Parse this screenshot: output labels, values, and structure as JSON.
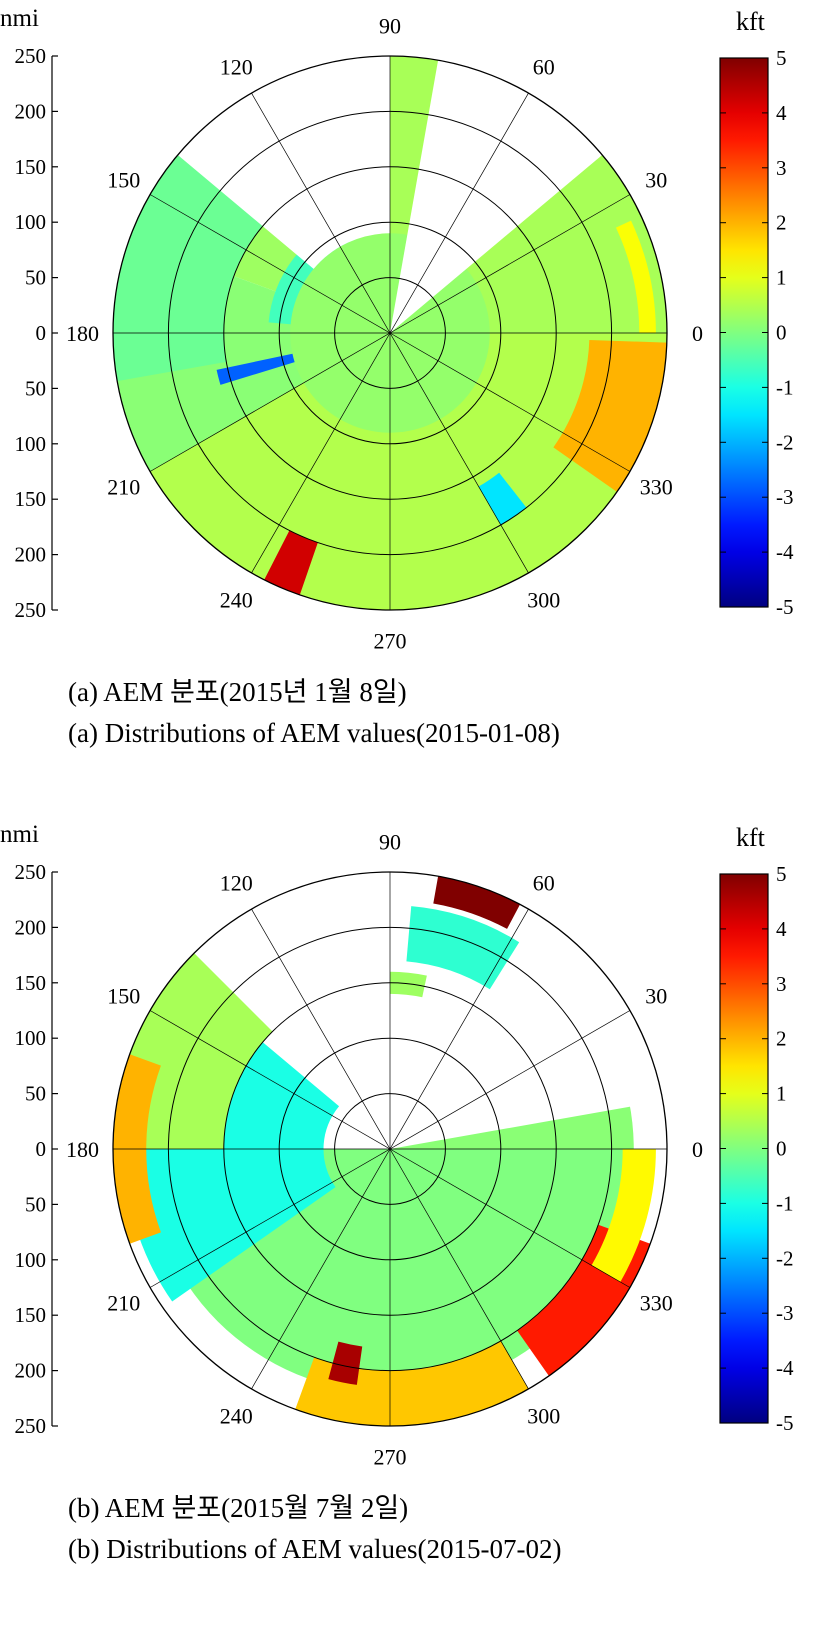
{
  "chart_data": [
    {
      "type": "heatmap",
      "subtype": "polar",
      "radial_axis_label": "nmi",
      "radial_ticks": [
        250,
        200,
        150,
        100,
        50,
        0,
        50,
        100,
        150,
        200,
        250
      ],
      "rlim": [
        0,
        250
      ],
      "angle_ticks": [
        90,
        60,
        30,
        0,
        330,
        300,
        270,
        240,
        210,
        180,
        150,
        120
      ],
      "colorbar_label": "kft",
      "colorbar_ticks": [
        5,
        4,
        3,
        2,
        1,
        0,
        -1,
        -2,
        -3,
        -4,
        -5
      ],
      "clim": [
        -5,
        5
      ],
      "colormap": "jet",
      "caption_kr": "(a)  AEM  분포(2015년  1월  8일)",
      "caption_en": "(a)  Distributions  of  AEM  values(2015-01-08)",
      "regions": [
        {
          "r": [
            0,
            250
          ],
          "theta": [
            0,
            100
          ],
          "value": 0.4
        },
        {
          "r": [
            0,
            250
          ],
          "theta": [
            100,
            160
          ],
          "value": 0.3
        },
        {
          "r": [
            0,
            250
          ],
          "theta": [
            160,
            210
          ],
          "value": 0.1
        },
        {
          "r": [
            0,
            250
          ],
          "theta": [
            210,
            360
          ],
          "value": 0.5
        },
        {
          "r": [
            50,
            110
          ],
          "theta": [
            110,
            175
          ],
          "value": -0.6
        },
        {
          "r": [
            150,
            250
          ],
          "theta": [
            125,
            190
          ],
          "value": -0.2
        },
        {
          "r": [
            180,
            250
          ],
          "theta": [
            325,
            358
          ],
          "value": 2.0
        },
        {
          "r": [
            0,
            90
          ],
          "theta": [
            0,
            360
          ],
          "value": 0.2
        },
        {
          "r": [
            200,
            250
          ],
          "theta": [
            243,
            251
          ],
          "value": 4.2
        },
        {
          "r": [
            160,
            200
          ],
          "theta": [
            300,
            308
          ],
          "value": -1.5
        },
        {
          "r": [
            90,
            160
          ],
          "theta": [
            192,
            197
          ],
          "value": -2.8
        },
        {
          "r": [
            225,
            240
          ],
          "theta": [
            0,
            25
          ],
          "value": 1.2
        },
        {
          "r": [
            0,
            250
          ],
          "theta": [
            40,
            80
          ],
          "value": null
        },
        {
          "r": [
            90,
            250
          ],
          "theta": [
            90,
            140
          ],
          "value": null
        }
      ]
    },
    {
      "type": "heatmap",
      "subtype": "polar",
      "radial_axis_label": "nmi",
      "radial_ticks": [
        250,
        200,
        150,
        100,
        50,
        0,
        50,
        100,
        150,
        200,
        250
      ],
      "rlim": [
        0,
        250
      ],
      "angle_ticks": [
        90,
        60,
        30,
        0,
        330,
        300,
        270,
        240,
        210,
        180,
        150,
        120
      ],
      "colorbar_label": "kft",
      "colorbar_ticks": [
        5,
        4,
        3,
        2,
        1,
        0,
        -1,
        -2,
        -3,
        -4,
        -5
      ],
      "clim": [
        -5,
        5
      ],
      "colormap": "jet",
      "caption_kr": "(b)  AEM  분포(2015월  7월  2일)",
      "caption_en": "(b)  Distributions  of  AEM  values(2015-07-02)",
      "regions": [
        {
          "r": [
            0,
            220
          ],
          "theta": [
            0,
            45
          ],
          "value": 0.1
        },
        {
          "r": [
            0,
            220
          ],
          "theta": [
            180,
            360
          ],
          "value": 0.0
        },
        {
          "r": [
            60,
            240
          ],
          "theta": [
            140,
            215
          ],
          "value": -1.0
        },
        {
          "r": [
            150,
            250
          ],
          "theta": [
            100,
            180
          ],
          "value": 0.4
        },
        {
          "r": [
            220,
            250
          ],
          "theta": [
            160,
            200
          ],
          "value": 2.0
        },
        {
          "r": [
            200,
            250
          ],
          "theta": [
            250,
            300
          ],
          "value": 1.8
        },
        {
          "r": [
            200,
            250
          ],
          "theta": [
            305,
            340
          ],
          "value": 3.5
        },
        {
          "r": [
            180,
            215
          ],
          "theta": [
            255,
            262
          ],
          "value": 4.6
        },
        {
          "r": [
            225,
            250
          ],
          "theta": [
            62,
            80
          ],
          "value": 5.0
        },
        {
          "r": [
            170,
            220
          ],
          "theta": [
            58,
            85
          ],
          "value": -0.8
        },
        {
          "r": [
            140,
            160
          ],
          "theta": [
            78,
            100
          ],
          "value": 0.3
        },
        {
          "r": [
            210,
            240
          ],
          "theta": [
            330,
            360
          ],
          "value": 1.3
        },
        {
          "r": [
            100,
            250
          ],
          "theta": [
            90,
            135
          ],
          "value": null
        },
        {
          "r": [
            0,
            250
          ],
          "theta": [
            10,
            55
          ],
          "value": null
        }
      ]
    }
  ]
}
